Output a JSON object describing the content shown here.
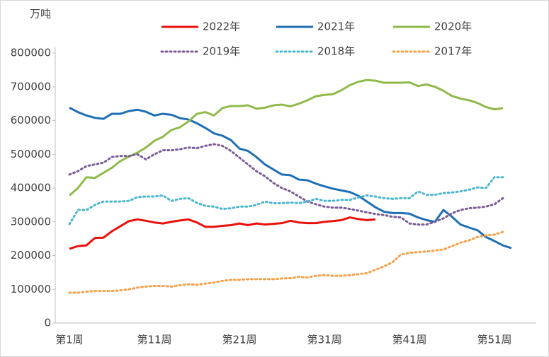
{
  "chart_data": {
    "type": "line",
    "y_label": "万吨",
    "categories": [
      "第1周",
      null,
      null,
      null,
      null,
      null,
      null,
      null,
      null,
      null,
      "第11周",
      null,
      null,
      null,
      null,
      null,
      null,
      null,
      null,
      null,
      "第21周",
      null,
      null,
      null,
      null,
      null,
      null,
      null,
      null,
      null,
      "第31周",
      null,
      null,
      null,
      null,
      null,
      null,
      null,
      null,
      null,
      "第41周",
      null,
      null,
      null,
      null,
      null,
      null,
      null,
      null,
      null,
      "第51周",
      null,
      null
    ],
    "ylim": [
      0,
      800000
    ],
    "yticks": [
      0,
      100000,
      200000,
      300000,
      400000,
      500000,
      600000,
      700000,
      800000
    ],
    "grid": false,
    "legend": "top",
    "series": [
      {
        "name": "2022年",
        "color": "#e8120c",
        "dashed": false,
        "values": [
          220000,
          228000,
          230000,
          252000,
          253000,
          272000,
          287000,
          302000,
          307000,
          303000,
          298000,
          295000,
          300000,
          304000,
          307000,
          298000,
          285000,
          285000,
          288000,
          290000,
          295000,
          290000,
          295000,
          292000,
          294000,
          296000,
          303000,
          298000,
          296000,
          296000,
          300000,
          302000,
          305000,
          313000,
          308000,
          305000,
          307000,
          null,
          null,
          null,
          null,
          null,
          null,
          null,
          null,
          null,
          null,
          null,
          null,
          null,
          null,
          null,
          null
        ]
      },
      {
        "name": "2021年",
        "color": "#1f6fb5",
        "dashed": false,
        "values": [
          638000,
          625000,
          615000,
          608000,
          605000,
          620000,
          620000,
          628000,
          632000,
          626000,
          615000,
          620000,
          617000,
          607000,
          603000,
          592000,
          578000,
          562000,
          555000,
          542000,
          517000,
          510000,
          492000,
          470000,
          455000,
          440000,
          438000,
          425000,
          423000,
          413000,
          405000,
          398000,
          393000,
          388000,
          377000,
          360000,
          343000,
          330000,
          326000,
          326000,
          324000,
          313000,
          305000,
          300000,
          335000,
          315000,
          292000,
          283000,
          275000,
          255000,
          243000,
          230000,
          222000
        ]
      },
      {
        "name": "2020年",
        "color": "#8fba4a",
        "dashed": false,
        "values": [
          378000,
          400000,
          432000,
          430000,
          445000,
          460000,
          480000,
          493000,
          505000,
          520000,
          540000,
          552000,
          572000,
          580000,
          597000,
          620000,
          625000,
          615000,
          637000,
          643000,
          643000,
          645000,
          635000,
          638000,
          645000,
          647000,
          642000,
          650000,
          660000,
          672000,
          676000,
          678000,
          690000,
          705000,
          715000,
          720000,
          718000,
          712000,
          712000,
          712000,
          713000,
          702000,
          707000,
          700000,
          688000,
          673000,
          665000,
          660000,
          652000,
          640000,
          633000,
          637000,
          null
        ]
      },
      {
        "name": "2019年",
        "color": "#7a5c96",
        "dashed": true,
        "values": [
          440000,
          450000,
          465000,
          470000,
          475000,
          492000,
          495000,
          495000,
          500000,
          485000,
          500000,
          512000,
          512000,
          515000,
          520000,
          518000,
          525000,
          530000,
          525000,
          510000,
          490000,
          470000,
          450000,
          435000,
          415000,
          400000,
          390000,
          375000,
          360000,
          352000,
          345000,
          342000,
          342000,
          338000,
          333000,
          328000,
          323000,
          320000,
          315000,
          313000,
          295000,
          292000,
          292000,
          300000,
          310000,
          325000,
          335000,
          340000,
          342000,
          345000,
          352000,
          370000,
          null
        ]
      },
      {
        "name": "2018年",
        "color": "#4bb6cf",
        "dashed": true,
        "values": [
          293000,
          335000,
          335000,
          350000,
          360000,
          360000,
          360000,
          362000,
          373000,
          375000,
          375000,
          378000,
          362000,
          368000,
          370000,
          356000,
          347000,
          345000,
          338000,
          340000,
          345000,
          345000,
          350000,
          360000,
          355000,
          355000,
          357000,
          355000,
          360000,
          368000,
          362000,
          362000,
          365000,
          365000,
          372000,
          378000,
          375000,
          370000,
          368000,
          370000,
          370000,
          390000,
          380000,
          380000,
          385000,
          387000,
          390000,
          395000,
          402000,
          400000,
          432000,
          432000,
          null
        ]
      },
      {
        "name": "2017年",
        "color": "#f4a14a",
        "dashed": true,
        "values": [
          90000,
          90000,
          93000,
          95000,
          95000,
          95000,
          97000,
          100000,
          105000,
          108000,
          110000,
          110000,
          108000,
          112000,
          115000,
          113000,
          117000,
          120000,
          125000,
          128000,
          128000,
          130000,
          130000,
          130000,
          130000,
          132000,
          133000,
          137000,
          135000,
          140000,
          142000,
          140000,
          140000,
          142000,
          145000,
          148000,
          158000,
          168000,
          180000,
          203000,
          208000,
          210000,
          212000,
          215000,
          218000,
          228000,
          238000,
          245000,
          255000,
          260000,
          262000,
          270000,
          null
        ]
      }
    ]
  }
}
